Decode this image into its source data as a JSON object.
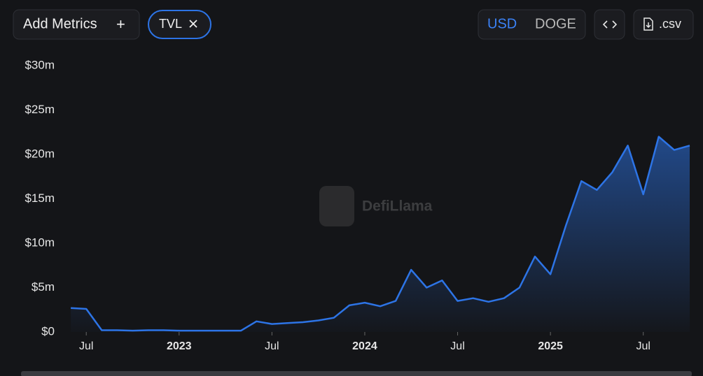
{
  "toolbar": {
    "add_metrics": "Add Metrics",
    "plus": "+",
    "metric": "TVL",
    "currency_primary": "USD",
    "currency_secondary": "DOGE",
    "csv": ".csv"
  },
  "chart_data": {
    "type": "area",
    "watermark": "DefiLlama",
    "color": "#2d74e6",
    "x": [
      "2022-06",
      "2022-07",
      "2022-08",
      "2022-09",
      "2022-10",
      "2022-11",
      "2022-12",
      "2023-01",
      "2023-02",
      "2023-03",
      "2023-04",
      "2023-05",
      "2023-06",
      "2023-07",
      "2023-08",
      "2023-09",
      "2023-10",
      "2023-11",
      "2023-12",
      "2024-01",
      "2024-02",
      "2024-03",
      "2024-04",
      "2024-05",
      "2024-06",
      "2024-07",
      "2024-08",
      "2024-09",
      "2024-10",
      "2024-11",
      "2024-12",
      "2025-01",
      "2025-02",
      "2025-03",
      "2025-04",
      "2025-05",
      "2025-06",
      "2025-07",
      "2025-08",
      "2025-09",
      "2025-10"
    ],
    "values": [
      2.7,
      2.6,
      0.2,
      0.2,
      0.15,
      0.2,
      0.2,
      0.15,
      0.15,
      0.15,
      0.15,
      0.15,
      1.2,
      0.9,
      1.0,
      1.1,
      1.3,
      1.6,
      3.0,
      3.3,
      2.9,
      3.5,
      7.0,
      5.0,
      5.8,
      3.5,
      3.8,
      3.4,
      3.8,
      5.0,
      8.5,
      6.5,
      12,
      17,
      16,
      18,
      21,
      15.5,
      22,
      20.5,
      21
    ],
    "xlim": [
      "2022-05",
      "2025-10"
    ],
    "xticks": [
      {
        "value": "2022-07",
        "label": "Jul"
      },
      {
        "value": "2023-01",
        "label": "2023"
      },
      {
        "value": "2023-07",
        "label": "Jul"
      },
      {
        "value": "2024-01",
        "label": "2024"
      },
      {
        "value": "2024-07",
        "label": "Jul"
      },
      {
        "value": "2025-01",
        "label": "2025"
      },
      {
        "value": "2025-07",
        "label": "Jul"
      }
    ],
    "ylim": [
      0,
      30
    ],
    "yticks": [
      {
        "value": 0,
        "label": "$0"
      },
      {
        "value": 5,
        "label": "$5m"
      },
      {
        "value": 10,
        "label": "$10m"
      },
      {
        "value": 15,
        "label": "$15m"
      },
      {
        "value": 20,
        "label": "$20m"
      },
      {
        "value": 25,
        "label": "$25m"
      },
      {
        "value": 30,
        "label": "$30m"
      }
    ]
  }
}
